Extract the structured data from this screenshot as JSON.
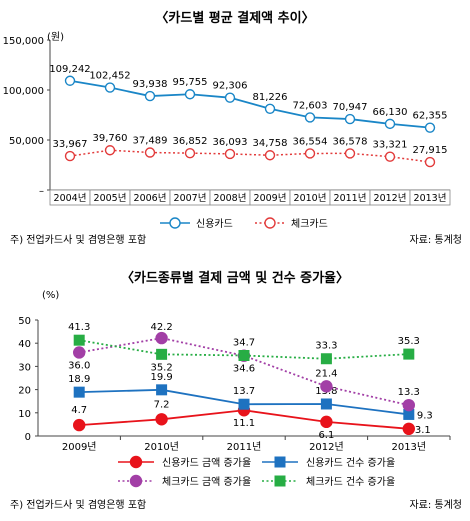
{
  "chart_data": [
    {
      "type": "line",
      "title": "〈카드별 평균 결제액 추이〉",
      "unit_label": "(원)",
      "categories": [
        "2004년",
        "2005년",
        "2006년",
        "2007년",
        "2008년",
        "2009년",
        "2010년",
        "2011년",
        "2012년",
        "2013년"
      ],
      "y_ticks": [
        "150,000",
        "100,000",
        "50,000",
        "–"
      ],
      "ylim": [
        0,
        150000
      ],
      "series": [
        {
          "name": "신용카드",
          "color": "#1a86c7",
          "marker": "open-circle",
          "line": "solid",
          "values": [
            109242,
            102452,
            93938,
            95755,
            92306,
            81226,
            72603,
            70947,
            66130,
            62355
          ],
          "labels": [
            "109,242",
            "102,452",
            "93,938",
            "95,755",
            "92,306",
            "81,226",
            "72,603",
            "70,947",
            "66,130",
            "62,355"
          ]
        },
        {
          "name": "체크카드",
          "color": "#e23b3b",
          "marker": "open-circle",
          "line": "dotted",
          "values": [
            33967,
            39760,
            37489,
            36852,
            36093,
            34758,
            36554,
            36578,
            33321,
            27915
          ],
          "labels": [
            "33,967",
            "39,760",
            "37,489",
            "36,852",
            "36,093",
            "34,758",
            "36,554",
            "36,578",
            "33,321",
            "27,915"
          ]
        }
      ],
      "note": "주) 전업카드사 및 겸영은행 포함",
      "source": "자료: 통계청",
      "grid": false,
      "legend": "bottom"
    },
    {
      "type": "line",
      "title": "〈카드종류별 결제 금액 및 건수 증가율〉",
      "unit_label": "(%)",
      "categories": [
        "2009년",
        "2010년",
        "2011년",
        "2012년",
        "2013년"
      ],
      "y_ticks": [
        "50",
        "40",
        "30",
        "20",
        "10",
        "0"
      ],
      "ylim": [
        0,
        50
      ],
      "series": [
        {
          "name": "신용카드 금액 증가율",
          "color": "#e8131b",
          "marker": "circle",
          "line": "solid",
          "values": [
            4.7,
            7.2,
            11.1,
            6.1,
            3.1
          ],
          "labels": [
            "4.7",
            "7.2",
            "11.1",
            "6.1",
            "3.1"
          ]
        },
        {
          "name": "신용카드 건수 증가율",
          "color": "#1e72c0",
          "marker": "square",
          "line": "solid",
          "values": [
            18.9,
            19.9,
            13.7,
            13.8,
            9.3
          ],
          "labels": [
            "18.9",
            "19.9",
            "13.7",
            "13.8",
            "9.3"
          ]
        },
        {
          "name": "체크카드 금액 증가율",
          "color": "#a23fa6",
          "marker": "circle",
          "line": "dotted",
          "values": [
            36.0,
            42.2,
            34.6,
            21.4,
            13.3
          ],
          "labels": [
            "36.0",
            "42.2",
            "34.6",
            "21.4",
            "13.3"
          ]
        },
        {
          "name": "체크카드 건수 증가율",
          "color": "#27ad44",
          "marker": "square",
          "line": "dotted",
          "values": [
            41.3,
            35.2,
            34.7,
            33.3,
            35.3
          ],
          "labels": [
            "41.3",
            "35.2",
            "34.7",
            "33.3",
            "35.3"
          ]
        }
      ],
      "note": "주) 전업카드사 및 겸영은행 포함",
      "source": "자료: 통계청",
      "grid": false,
      "legend": "bottom"
    }
  ]
}
